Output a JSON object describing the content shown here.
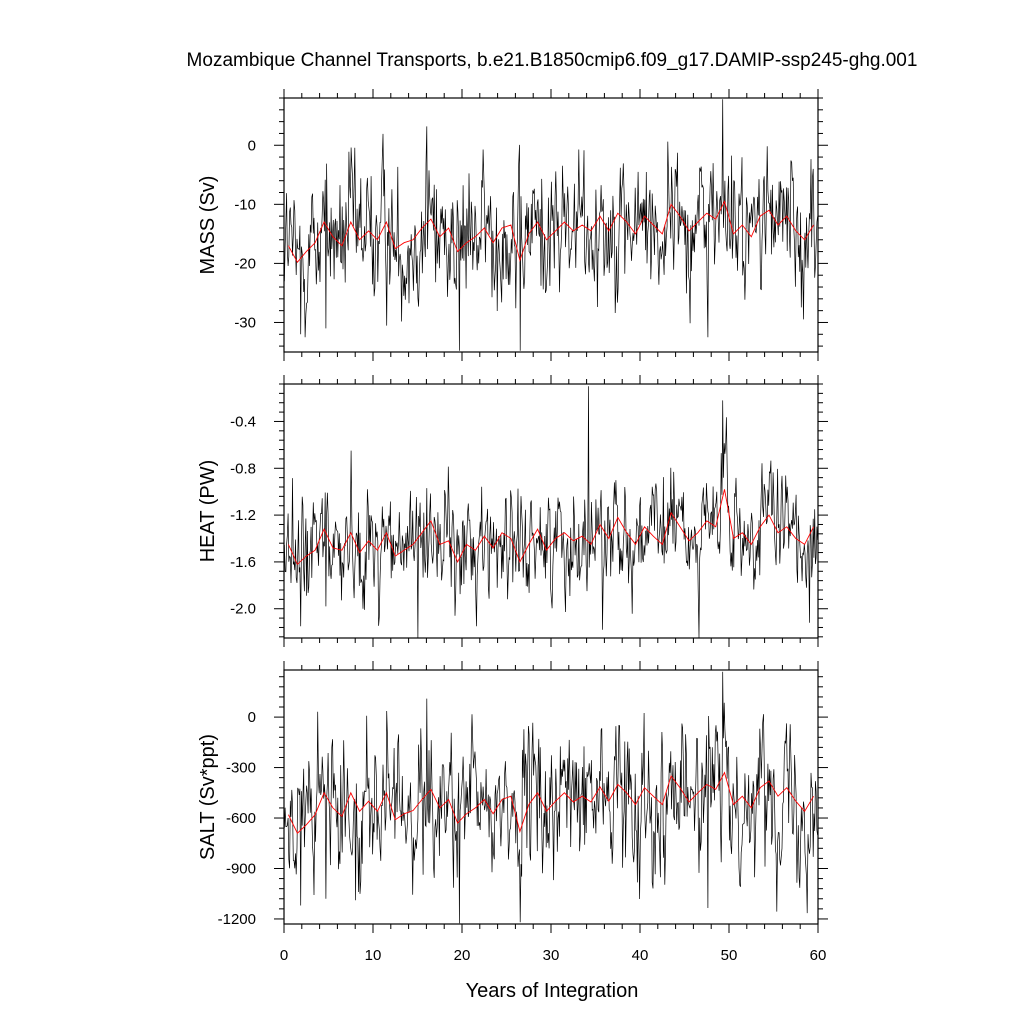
{
  "chart_data": {
    "type": "line",
    "title": "Mozambique Channel Transports, b.e21.B1850cmip6.f09_g17.DAMIP-ssp245-ghg.001",
    "xlabel": "Years of Integration",
    "xlim": [
      0,
      60
    ],
    "xticks": [
      "0",
      "10",
      "20",
      "30",
      "40",
      "50",
      "60"
    ],
    "series_colors": {
      "monthly": "#000000",
      "annual": "#ff0000"
    },
    "grid": false,
    "panels": [
      {
        "ylabel": "MASS (Sv)",
        "ylim": [
          -35,
          8
        ],
        "yticks": [
          {
            "v": 0,
            "label": "0"
          },
          {
            "v": -10,
            "label": "-10"
          },
          {
            "v": -20,
            "label": "-20"
          },
          {
            "v": -30,
            "label": "-30"
          }
        ],
        "annual": [
          -17,
          -19.8,
          -18,
          -16.5,
          -13,
          -15.5,
          -17,
          -13,
          -16,
          -14.5,
          -16,
          -13,
          -17.5,
          -16.5,
          -16,
          -14,
          -12.5,
          -15.5,
          -14,
          -18,
          -16.5,
          -15.5,
          -14,
          -16.5,
          -14,
          -13.5,
          -19.5,
          -15,
          -13,
          -16,
          -14.5,
          -13,
          -14.5,
          -13.5,
          -14.5,
          -12,
          -14.5,
          -11.5,
          -13,
          -15,
          -12,
          -13.5,
          -15,
          -10,
          -12,
          -14.5,
          -13,
          -11.5,
          -12.5,
          -9.5,
          -15,
          -13.5,
          -15.5,
          -12,
          -11,
          -13.5,
          -12,
          -14.5,
          -16,
          -13.5
        ],
        "monthly_mean": -15.8,
        "monthly_sd": 5.6,
        "spikes": [
          [
            16,
            3.2
          ],
          [
            49.3,
            7.8
          ],
          [
            19.7,
            -34.8
          ],
          [
            26.5,
            -34.8
          ],
          [
            47.6,
            -32.5
          ],
          [
            1.9,
            -32
          ],
          [
            4.7,
            -31
          ]
        ]
      },
      {
        "ylabel": "HEAT (PW)",
        "ylim": [
          -2.25,
          -0.08
        ],
        "yticks": [
          {
            "v": -0.4,
            "label": "-0.4"
          },
          {
            "v": -0.8,
            "label": "-0.8"
          },
          {
            "v": -1.2,
            "label": "-1.2"
          },
          {
            "v": -1.6,
            "label": "-1.6"
          },
          {
            "v": -2.0,
            "label": "-2.0"
          }
        ],
        "annual": [
          -1.45,
          -1.62,
          -1.55,
          -1.5,
          -1.32,
          -1.48,
          -1.5,
          -1.35,
          -1.52,
          -1.42,
          -1.5,
          -1.35,
          -1.55,
          -1.5,
          -1.45,
          -1.35,
          -1.25,
          -1.45,
          -1.42,
          -1.6,
          -1.45,
          -1.5,
          -1.38,
          -1.48,
          -1.35,
          -1.4,
          -1.6,
          -1.45,
          -1.32,
          -1.5,
          -1.4,
          -1.35,
          -1.42,
          -1.38,
          -1.45,
          -1.28,
          -1.4,
          -1.22,
          -1.35,
          -1.45,
          -1.3,
          -1.38,
          -1.45,
          -1.18,
          -1.3,
          -1.42,
          -1.35,
          -1.25,
          -1.3,
          -0.98,
          -1.4,
          -1.35,
          -1.45,
          -1.3,
          -1.2,
          -1.35,
          -1.3,
          -1.4,
          -1.45,
          -1.3
        ],
        "monthly_mean": -1.45,
        "monthly_sd": 0.22,
        "spikes": [
          [
            34.2,
            -0.1
          ],
          [
            49.3,
            -0.22
          ],
          [
            15,
            -2.25
          ],
          [
            35.8,
            -2.18
          ],
          [
            1.9,
            -2.15
          ],
          [
            59,
            -2.12
          ],
          [
            4.7,
            -1.98
          ]
        ]
      },
      {
        "ylabel": "SALT (Sv*ppt)",
        "ylim": [
          -1230,
          280
        ],
        "yticks": [
          {
            "v": 0,
            "label": "0"
          },
          {
            "v": -300,
            "label": "-300"
          },
          {
            "v": -600,
            "label": "-600"
          },
          {
            "v": -900,
            "label": "-900"
          },
          {
            "v": -1200,
            "label": "-1200"
          }
        ],
        "annual": [
          -580,
          -690,
          -640,
          -580,
          -450,
          -540,
          -590,
          -450,
          -560,
          -500,
          -560,
          -450,
          -610,
          -575,
          -555,
          -490,
          -430,
          -540,
          -490,
          -630,
          -575,
          -540,
          -490,
          -575,
          -490,
          -470,
          -680,
          -520,
          -450,
          -560,
          -500,
          -450,
          -505,
          -470,
          -505,
          -415,
          -500,
          -400,
          -450,
          -520,
          -420,
          -470,
          -520,
          -350,
          -420,
          -505,
          -450,
          -400,
          -430,
          -330,
          -520,
          -470,
          -540,
          -420,
          -380,
          -470,
          -420,
          -500,
          -560,
          -470
        ],
        "monthly_mean": -555,
        "monthly_sd": 195,
        "spikes": [
          [
            16,
            110
          ],
          [
            49.3,
            270
          ],
          [
            19.7,
            -1225
          ],
          [
            26.5,
            -1220
          ],
          [
            47.6,
            -1135
          ],
          [
            1.9,
            -1120
          ],
          [
            4.7,
            -1080
          ]
        ]
      }
    ]
  }
}
